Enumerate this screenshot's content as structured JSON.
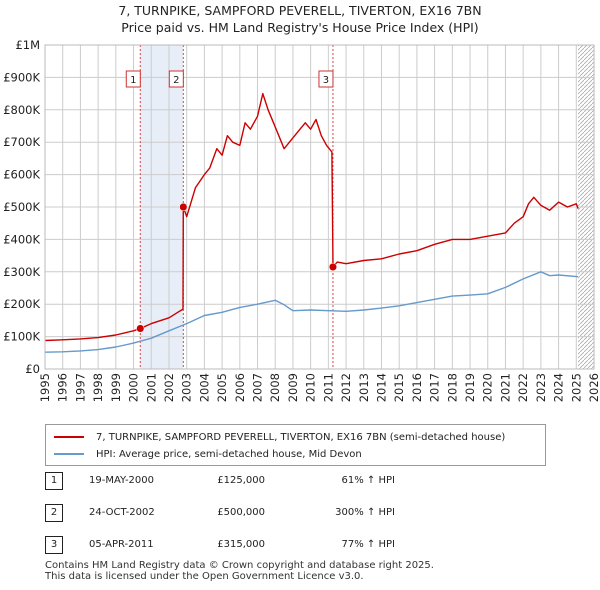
{
  "title_line1": "7, TURNPIKE, SAMPFORD PEVERELL, TIVERTON, EX16 7BN",
  "title_line2": "Price paid vs. HM Land Registry's House Price Index (HPI)",
  "colors": {
    "property": "#cc0000",
    "hpi": "#6699cc",
    "shade": "#e8eef8",
    "grid": "#cccccc",
    "vline": "#dd4444"
  },
  "chart_data": {
    "type": "line",
    "title": "Price paid vs. HM Land Registry's House Price Index (HPI)",
    "xlabel": "",
    "ylabel": "",
    "xlim": [
      1995,
      2026
    ],
    "ylim": [
      0,
      1000000
    ],
    "y_ticks": [
      {
        "value": 0,
        "label": "£0"
      },
      {
        "value": 100000,
        "label": "£100K"
      },
      {
        "value": 200000,
        "label": "£200K"
      },
      {
        "value": 300000,
        "label": "£300K"
      },
      {
        "value": 400000,
        "label": "£400K"
      },
      {
        "value": 500000,
        "label": "£500K"
      },
      {
        "value": 600000,
        "label": "£600K"
      },
      {
        "value": 700000,
        "label": "£700K"
      },
      {
        "value": 800000,
        "label": "£800K"
      },
      {
        "value": 900000,
        "label": "£900K"
      },
      {
        "value": 1000000,
        "label": "£1M"
      }
    ],
    "x_ticks": [
      "1995",
      "1996",
      "1997",
      "1998",
      "1999",
      "2000",
      "2001",
      "2002",
      "2003",
      "2004",
      "2005",
      "2006",
      "2007",
      "2008",
      "2009",
      "2010",
      "2011",
      "2012",
      "2013",
      "2014",
      "2015",
      "2016",
      "2017",
      "2018",
      "2019",
      "2020",
      "2021",
      "2022",
      "2023",
      "2024",
      "2025",
      "2026"
    ],
    "shaded_periods": [
      [
        2000.38,
        2002.81
      ]
    ],
    "hatched_after": 2025.1,
    "transactions": [
      {
        "label": "1",
        "x": 2000.38,
        "y": 125000
      },
      {
        "label": "2",
        "x": 2002.81,
        "y": 500000
      },
      {
        "label": "3",
        "x": 2011.26,
        "y": 315000
      }
    ],
    "series": [
      {
        "name": "7, TURNPIKE, SAMPFORD PEVERELL, TIVERTON, EX16 7BN (semi-detached house)",
        "x": [
          1995,
          1996,
          1997,
          1998,
          1999,
          2000,
          2000.38,
          2001,
          2002,
          2002.5,
          2002.79,
          2002.81,
          2003,
          2003.5,
          2004,
          2004.3,
          2004.7,
          2005,
          2005.3,
          2005.6,
          2006,
          2006.3,
          2006.6,
          2007,
          2007.3,
          2007.6,
          2007.9,
          2008.2,
          2008.5,
          2008.8,
          2009.1,
          2009.4,
          2009.7,
          2010,
          2010.3,
          2010.6,
          2010.9,
          2011.2,
          2011.26,
          2011.5,
          2012,
          2013,
          2014,
          2015,
          2016,
          2017,
          2018,
          2019,
          2020,
          2021,
          2021.5,
          2022,
          2022.3,
          2022.6,
          2023,
          2023.5,
          2024,
          2024.5,
          2025,
          2025.1
        ],
        "values": [
          88000,
          90000,
          93000,
          97000,
          105000,
          118000,
          125000,
          140000,
          158000,
          175000,
          185000,
          500000,
          470000,
          560000,
          600000,
          620000,
          680000,
          660000,
          720000,
          700000,
          690000,
          760000,
          740000,
          780000,
          850000,
          800000,
          760000,
          720000,
          680000,
          700000,
          720000,
          740000,
          760000,
          740000,
          770000,
          720000,
          690000,
          670000,
          315000,
          330000,
          325000,
          335000,
          340000,
          355000,
          365000,
          385000,
          400000,
          400000,
          410000,
          420000,
          450000,
          470000,
          510000,
          530000,
          505000,
          490000,
          515000,
          500000,
          510000,
          495000
        ]
      },
      {
        "name": "HPI: Average price, semi-detached house, Mid Devon",
        "x": [
          1995,
          1996,
          1997,
          1998,
          1999,
          2000,
          2001,
          2002,
          2003,
          2004,
          2005,
          2006,
          2007,
          2008,
          2008.5,
          2009,
          2010,
          2011,
          2012,
          2013,
          2014,
          2015,
          2016,
          2017,
          2018,
          2019,
          2020,
          2021,
          2022,
          2023,
          2023.5,
          2024,
          2025.1
        ],
        "values": [
          52000,
          53000,
          56000,
          60000,
          68000,
          80000,
          95000,
          118000,
          140000,
          165000,
          175000,
          190000,
          200000,
          212000,
          198000,
          180000,
          182000,
          180000,
          178000,
          182000,
          188000,
          195000,
          205000,
          215000,
          225000,
          228000,
          232000,
          252000,
          278000,
          300000,
          288000,
          290000,
          285000
        ]
      }
    ]
  },
  "legend": {
    "property_label": "7, TURNPIKE, SAMPFORD PEVERELL, TIVERTON, EX16 7BN (semi-detached house)",
    "hpi_label": "HPI: Average price, semi-detached house, Mid Devon"
  },
  "transactions_table": [
    {
      "num": "1",
      "date": "19-MAY-2000",
      "price": "£125,000",
      "hpi": "61% ↑ HPI"
    },
    {
      "num": "2",
      "date": "24-OCT-2002",
      "price": "£500,000",
      "hpi": "300% ↑ HPI"
    },
    {
      "num": "3",
      "date": "05-APR-2011",
      "price": "£315,000",
      "hpi": "77% ↑ HPI"
    }
  ],
  "footer_line1": "Contains HM Land Registry data © Crown copyright and database right 2025.",
  "footer_line2": "This data is licensed under the Open Government Licence v3.0."
}
